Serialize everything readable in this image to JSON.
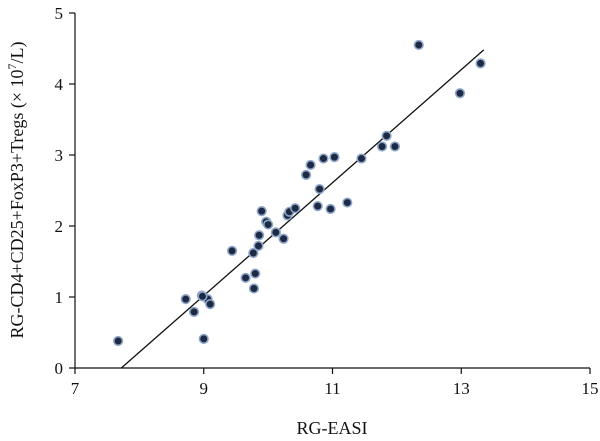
{
  "chart_data": {
    "type": "scatter",
    "title": "",
    "xlabel": "RG-EASI",
    "ylabel": "RG-CD4+CD25+FoxP3+Tregs (× 10",
    "ylabel_sup": "7",
    "ylabel_tail": "/L)",
    "xlim": [
      7,
      15
    ],
    "ylim": [
      0,
      5
    ],
    "x_ticks": [
      7,
      9,
      11,
      13,
      15
    ],
    "y_ticks": [
      0,
      1,
      2,
      3,
      4,
      5
    ],
    "grid": false,
    "legend": "none",
    "fit_line": {
      "x": [
        7.72,
        13.35
      ],
      "y": [
        0,
        4.48
      ]
    },
    "point_color": "#1d2a44",
    "point_edge_color": "#8fa6c8",
    "series": [
      {
        "x": [
          7.67,
          8.72,
          8.85,
          8.97,
          9.0,
          9.06,
          9.1,
          8.98,
          9.44,
          9.65,
          9.77,
          9.8,
          9.78,
          9.86,
          9.85,
          9.9,
          9.97,
          10.0,
          10.12,
          10.24,
          10.3,
          10.33,
          10.42,
          10.59,
          10.66,
          10.77,
          10.8,
          10.86,
          10.97,
          11.03,
          11.23,
          11.45,
          11.77,
          11.84,
          11.97,
          12.34,
          12.98,
          13.3
        ],
        "y": [
          0.38,
          0.97,
          0.79,
          1.02,
          0.41,
          0.97,
          0.9,
          1.01,
          1.65,
          1.27,
          1.62,
          1.33,
          1.12,
          1.87,
          1.72,
          2.21,
          2.06,
          2.02,
          1.91,
          1.82,
          2.15,
          2.2,
          2.25,
          2.72,
          2.86,
          2.28,
          2.52,
          2.95,
          2.24,
          2.97,
          2.33,
          2.95,
          3.12,
          3.27,
          3.12,
          4.55,
          3.87,
          4.29
        ]
      }
    ]
  }
}
